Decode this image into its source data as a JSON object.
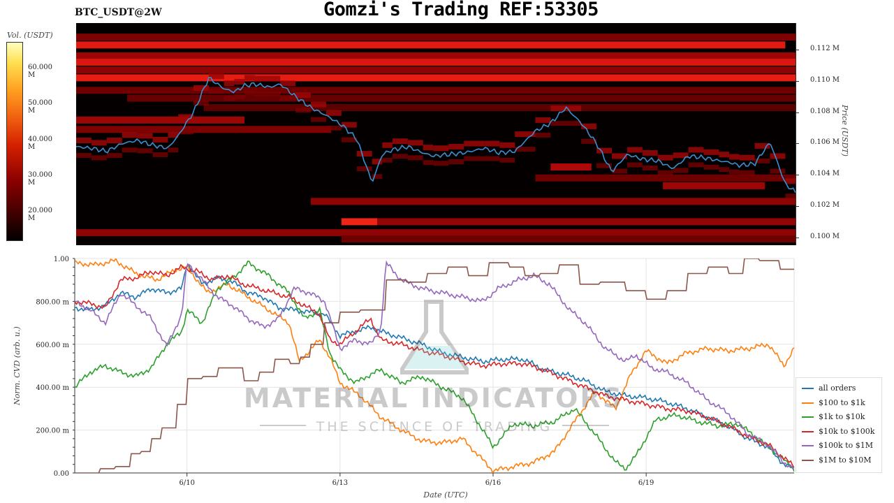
{
  "header": {
    "pair": "BTC_USDT@2W",
    "title": "Gomzi's Trading REF:53305"
  },
  "watermark": {
    "brand": "MATERIAL INDICATORS",
    "tagline": "THE SCIENCE OF TRADING"
  },
  "colors": {
    "all_orders": "#1f77b4",
    "usd100_1k": "#ff7f0e",
    "usd1k_10k": "#2ca02c",
    "usd10k_100k": "#d62728",
    "usd100k_1m": "#9467bd",
    "usd1m_10m": "#8c564b",
    "price_line": "#3a8fd0",
    "heat_background": "#050000"
  },
  "chart_data": [
    {
      "type": "heatmap",
      "title": "",
      "colorbar_label": "Vol. (USDT)",
      "colorbar_ticks": [
        "20.000 M",
        "30.000 M",
        "40.000 M",
        "50.000 M",
        "60.000 M"
      ],
      "colorbar_range": [
        14000000,
        68000000
      ],
      "ylabel": "Price (USDT)",
      "price_ticks": [
        "0.100 M",
        "0.102 M",
        "0.104 M",
        "0.106 M",
        "0.108 M",
        "0.110 M",
        "0.112 M"
      ],
      "ylim": [
        99500,
        113700
      ],
      "xlim_days": [
        0,
        14.1
      ],
      "price": {
        "x_days": [
          0,
          0.3,
          0.6,
          0.9,
          1.2,
          1.5,
          1.8,
          2.0,
          2.3,
          2.6,
          2.9,
          3.1,
          3.3,
          3.5,
          3.8,
          4.0,
          4.3,
          4.6,
          4.9,
          5.2,
          5.5,
          5.8,
          6.0,
          6.2,
          6.5,
          6.8,
          7.0,
          7.3,
          7.6,
          8.0,
          8.3,
          8.6,
          9.0,
          9.3,
          9.6,
          9.9,
          10.2,
          10.5,
          10.8,
          11.1,
          11.4,
          11.7,
          12.0,
          12.3,
          12.6,
          12.8,
          13.0,
          13.3,
          13.6,
          13.9,
          14.1
        ],
        "values": [
          105800,
          105700,
          105500,
          106000,
          106200,
          105900,
          105700,
          106500,
          108000,
          110200,
          109500,
          109300,
          109700,
          109800,
          109600,
          109800,
          109000,
          108300,
          107800,
          107200,
          106300,
          103500,
          105300,
          105600,
          105800,
          105400,
          105200,
          105300,
          105400,
          105700,
          105400,
          105500,
          106800,
          107300,
          108300,
          107300,
          106000,
          104200,
          105300,
          105000,
          104900,
          104400,
          105200,
          105100,
          104900,
          104800,
          104600,
          104700,
          106100,
          103400,
          102900
        ]
      },
      "bands": [
        {
          "price": 112800,
          "x_start": 0,
          "x_end": 14.1,
          "intensity": 0.35
        },
        {
          "price": 112300,
          "x_start": 0,
          "x_end": 13.9,
          "intensity": 0.75
        },
        {
          "price": 111600,
          "x_start": 0,
          "x_end": 14.1,
          "intensity": 0.45
        },
        {
          "price": 111200,
          "x_start": 0,
          "x_end": 14.1,
          "intensity": 0.7
        },
        {
          "price": 110700,
          "x_start": 0,
          "x_end": 14.1,
          "intensity": 0.4
        },
        {
          "price": 110200,
          "x_start": 0,
          "x_end": 14.1,
          "intensity": 0.78
        },
        {
          "price": 109400,
          "x_start": 0,
          "x_end": 14.1,
          "intensity": 0.3
        },
        {
          "price": 108900,
          "x_start": 1.0,
          "x_end": 14.1,
          "intensity": 0.28
        },
        {
          "price": 108300,
          "x_start": 2.5,
          "x_end": 14.1,
          "intensity": 0.25
        },
        {
          "price": 107500,
          "x_start": 0,
          "x_end": 3.3,
          "intensity": 0.45
        },
        {
          "price": 106900,
          "x_start": 0,
          "x_end": 5.0,
          "intensity": 0.35
        },
        {
          "price": 104500,
          "x_start": 9.3,
          "x_end": 10.1,
          "intensity": 0.5
        },
        {
          "price": 103800,
          "x_start": 9.0,
          "x_end": 14.1,
          "intensity": 0.3
        },
        {
          "price": 103300,
          "x_start": 11.5,
          "x_end": 13.5,
          "intensity": 0.45
        },
        {
          "price": 102300,
          "x_start": 4.6,
          "x_end": 14.1,
          "intensity": 0.4
        },
        {
          "price": 101000,
          "x_start": 5.2,
          "x_end": 5.9,
          "intensity": 0.82
        },
        {
          "price": 101000,
          "x_start": 5.9,
          "x_end": 14.1,
          "intensity": 0.42
        },
        {
          "price": 100300,
          "x_start": 0,
          "x_end": 14.1,
          "intensity": 0.4
        },
        {
          "price": 99900,
          "x_start": 5.2,
          "x_end": 14.1,
          "intensity": 0.3
        }
      ]
    },
    {
      "type": "line",
      "title": "",
      "xlabel": "Date (UTC)",
      "ylabel": "Norm. CVD (arb. u.)",
      "ylim": [
        0,
        1
      ],
      "xlim_days": [
        0,
        14.1
      ],
      "y_ticks": [
        "0.00",
        "200.00 m",
        "400.00 m",
        "600.00 m",
        "800.00 m",
        "1.00"
      ],
      "x_ticks": [
        {
          "day": 2.2,
          "label": "6/10"
        },
        {
          "day": 5.2,
          "label": "6/13"
        },
        {
          "day": 8.2,
          "label": "6/16"
        },
        {
          "day": 11.2,
          "label": "6/19"
        }
      ],
      "legend_position": "bottom-right",
      "series": [
        {
          "name": "all orders",
          "color_key": "all_orders",
          "x": [
            0,
            0.3,
            0.6,
            0.9,
            1.2,
            1.5,
            1.8,
            2.1,
            2.2,
            2.5,
            2.8,
            3.1,
            3.4,
            3.7,
            4.0,
            4.3,
            4.6,
            4.9,
            5.2,
            5.5,
            5.8,
            6.0,
            6.4,
            6.8,
            7.2,
            7.6,
            8.0,
            8.4,
            8.8,
            9.2,
            9.6,
            10.0,
            10.4,
            10.8,
            11.2,
            11.6,
            12.0,
            12.4,
            12.8,
            13.2,
            13.6,
            13.9,
            14.1
          ],
          "values": [
            0.77,
            0.76,
            0.78,
            0.84,
            0.82,
            0.86,
            0.84,
            0.86,
            0.98,
            0.88,
            0.91,
            0.89,
            0.84,
            0.82,
            0.77,
            0.76,
            0.75,
            0.74,
            0.64,
            0.66,
            0.68,
            0.66,
            0.63,
            0.6,
            0.56,
            0.54,
            0.52,
            0.53,
            0.53,
            0.48,
            0.46,
            0.43,
            0.38,
            0.36,
            0.35,
            0.33,
            0.3,
            0.26,
            0.22,
            0.16,
            0.12,
            0.04,
            0.02
          ]
        },
        {
          "name": "$100 to $1k",
          "color_key": "usd100_1k",
          "x": [
            0,
            0.4,
            0.8,
            1.2,
            1.6,
            2.0,
            2.2,
            2.6,
            3.0,
            3.4,
            3.8,
            4.2,
            4.4,
            4.8,
            5.0,
            5.2,
            5.6,
            6.0,
            6.4,
            6.8,
            7.2,
            7.6,
            8.0,
            8.2,
            8.6,
            9.0,
            9.4,
            9.8,
            10.2,
            10.6,
            10.9,
            11.2,
            11.6,
            12.0,
            12.4,
            12.8,
            13.2,
            13.6,
            13.9,
            14.1
          ],
          "values": [
            0.98,
            0.97,
            0.99,
            0.93,
            0.9,
            0.95,
            0.96,
            0.84,
            0.88,
            0.82,
            0.76,
            0.7,
            0.52,
            0.62,
            0.54,
            0.42,
            0.36,
            0.26,
            0.2,
            0.15,
            0.14,
            0.16,
            0.06,
            0.01,
            0.03,
            0.05,
            0.1,
            0.24,
            0.38,
            0.3,
            0.46,
            0.57,
            0.51,
            0.56,
            0.58,
            0.57,
            0.58,
            0.6,
            0.5,
            0.58
          ]
        },
        {
          "name": "$1k to $10k",
          "color_key": "usd1k_10k",
          "x": [
            0,
            0.3,
            0.6,
            0.9,
            1.2,
            1.5,
            1.8,
            2.1,
            2.2,
            2.5,
            2.8,
            3.1,
            3.4,
            3.8,
            4.2,
            4.5,
            4.8,
            5.0,
            5.2,
            5.5,
            5.8,
            6.0,
            6.4,
            6.8,
            7.2,
            7.6,
            8.0,
            8.2,
            8.6,
            9.0,
            9.4,
            9.8,
            10.2,
            10.6,
            10.8,
            11.0,
            11.4,
            11.8,
            12.2,
            12.6,
            13.0,
            13.4,
            13.8,
            14.1
          ],
          "values": [
            0.4,
            0.47,
            0.5,
            0.47,
            0.45,
            0.49,
            0.6,
            0.66,
            0.76,
            0.7,
            0.86,
            0.91,
            0.98,
            0.92,
            0.84,
            0.72,
            0.76,
            0.56,
            0.48,
            0.42,
            0.46,
            0.48,
            0.42,
            0.45,
            0.4,
            0.35,
            0.2,
            0.12,
            0.23,
            0.22,
            0.24,
            0.3,
            0.18,
            0.05,
            0.02,
            0.08,
            0.25,
            0.27,
            0.24,
            0.22,
            0.23,
            0.16,
            0.08,
            0.02
          ]
        },
        {
          "name": "$10k to $100k",
          "color_key": "usd10k_100k",
          "x": [
            0,
            0.3,
            0.6,
            0.9,
            1.2,
            1.5,
            1.8,
            2.1,
            2.4,
            2.7,
            3.0,
            3.3,
            3.6,
            3.9,
            4.2,
            4.5,
            4.8,
            5.0,
            5.2,
            5.5,
            5.8,
            6.0,
            6.4,
            6.8,
            7.2,
            7.6,
            8.0,
            8.4,
            8.8,
            9.2,
            9.6,
            10.0,
            10.4,
            10.8,
            11.2,
            11.6,
            12.0,
            12.4,
            12.8,
            13.2,
            13.6,
            13.9,
            14.1
          ],
          "values": [
            0.8,
            0.79,
            0.77,
            0.9,
            0.91,
            0.94,
            0.92,
            0.96,
            0.94,
            0.9,
            0.92,
            0.88,
            0.86,
            0.84,
            0.82,
            0.78,
            0.74,
            0.62,
            0.6,
            0.66,
            0.72,
            0.62,
            0.6,
            0.57,
            0.55,
            0.52,
            0.5,
            0.51,
            0.51,
            0.48,
            0.44,
            0.4,
            0.36,
            0.34,
            0.32,
            0.3,
            0.29,
            0.26,
            0.22,
            0.17,
            0.13,
            0.07,
            0.03
          ]
        },
        {
          "name": "$100k to $1M",
          "color_key": "usd100k_1m",
          "x": [
            0,
            0.3,
            0.6,
            0.9,
            1.2,
            1.5,
            1.8,
            2.1,
            2.2,
            2.5,
            2.8,
            3.1,
            3.4,
            3.7,
            4.0,
            4.3,
            4.6,
            4.9,
            5.2,
            5.5,
            5.8,
            6.0,
            6.1,
            6.4,
            6.8,
            7.2,
            7.6,
            8.0,
            8.3,
            8.7,
            9.0,
            9.3,
            9.7,
            10.0,
            10.4,
            10.8,
            11.0,
            11.3,
            11.6,
            12.0,
            12.4,
            12.8,
            13.2,
            13.6,
            13.9,
            14.1
          ],
          "values": [
            0.8,
            0.76,
            0.7,
            0.84,
            0.78,
            0.72,
            0.59,
            0.74,
            0.98,
            0.9,
            0.82,
            0.78,
            0.72,
            0.68,
            0.72,
            0.86,
            0.84,
            0.8,
            0.58,
            0.62,
            0.6,
            0.67,
            0.98,
            0.9,
            0.86,
            0.84,
            0.82,
            0.8,
            0.86,
            0.9,
            0.92,
            0.88,
            0.76,
            0.7,
            0.58,
            0.52,
            0.55,
            0.49,
            0.47,
            0.42,
            0.34,
            0.28,
            0.18,
            0.13,
            0.05,
            0.02
          ]
        },
        {
          "name": "$1M to $10M",
          "color_key": "usd1m_10m",
          "x": [
            0,
            0.3,
            0.5,
            0.8,
            1.1,
            1.3,
            1.5,
            1.7,
            2.0,
            2.2,
            2.5,
            2.8,
            3.0,
            3.3,
            3.6,
            3.9,
            4.2,
            4.4,
            4.6,
            4.9,
            5.2,
            5.6,
            5.9,
            6.1,
            6.5,
            6.9,
            7.3,
            7.7,
            8.1,
            8.5,
            8.8,
            9.1,
            9.5,
            9.9,
            10.3,
            10.8,
            11.2,
            11.6,
            12.0,
            12.4,
            12.8,
            13.1,
            13.4,
            13.8,
            14.1
          ],
          "values": [
            0.0,
            0.0,
            0.02,
            0.03,
            0.09,
            0.1,
            0.16,
            0.21,
            0.32,
            0.44,
            0.45,
            0.49,
            0.49,
            0.43,
            0.47,
            0.53,
            0.51,
            0.54,
            0.6,
            0.7,
            0.75,
            0.76,
            0.76,
            0.9,
            0.89,
            0.93,
            0.96,
            0.92,
            0.98,
            0.96,
            0.92,
            0.93,
            0.97,
            0.88,
            0.89,
            0.85,
            0.81,
            0.85,
            0.93,
            0.96,
            0.93,
            1.0,
            0.99,
            0.95,
            0.92
          ]
        }
      ]
    }
  ]
}
